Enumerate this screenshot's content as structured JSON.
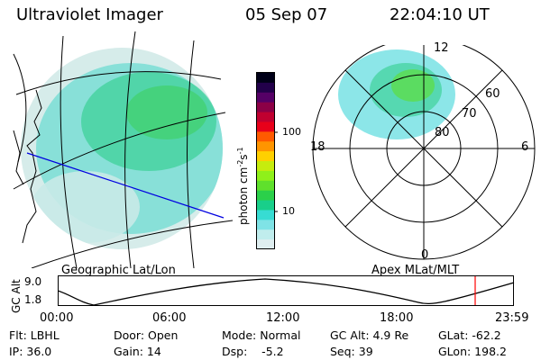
{
  "header": {
    "instrument": "Ultraviolet Imager",
    "date": "05 Sep 07",
    "time": "22:04:10 UT"
  },
  "left_panel": {
    "label": "Geographic Lat/Lon"
  },
  "right_panel": {
    "label": "Apex MLat/MLT",
    "lat_labels": [
      "80",
      "70",
      "60"
    ],
    "mlt_labels": {
      "top": "12",
      "left": "18",
      "right": "6",
      "bottom": "0"
    }
  },
  "colorbar": {
    "unit_label": "photon cm",
    "unit_exp": "-2",
    "unit_s": "s",
    "unit_exp2": "-1",
    "ticks": [
      "100",
      "10"
    ],
    "colors": [
      "#dfeef0",
      "#c0eded",
      "#7fe3e6",
      "#37dcd3",
      "#19cf8a",
      "#2bd04a",
      "#5fe02c",
      "#8ff01a",
      "#c6ec0e",
      "#ffd000",
      "#ff9500",
      "#ff5a00",
      "#e8001a",
      "#c00030",
      "#8c0046",
      "#550066",
      "#22004a",
      "#000018"
    ]
  },
  "timeline": {
    "y_axis_label": "GC Alt",
    "y_ticks": [
      "9.0",
      "1.8"
    ],
    "x_ticks": [
      "00:00",
      "06:00",
      "12:00",
      "18:00",
      "23:59"
    ],
    "marker_color": "#ff0000"
  },
  "info": {
    "row1": [
      "Flt: LBHL",
      "Door: Open",
      "Mode: Normal",
      "GC Alt: 4.9 Re",
      "GLat: -62.2"
    ],
    "row2": [
      "IP: 36.0",
      "Gain: 14",
      "Dsp:    -5.2",
      "Seq: 39",
      "GLon: 198.2"
    ]
  }
}
